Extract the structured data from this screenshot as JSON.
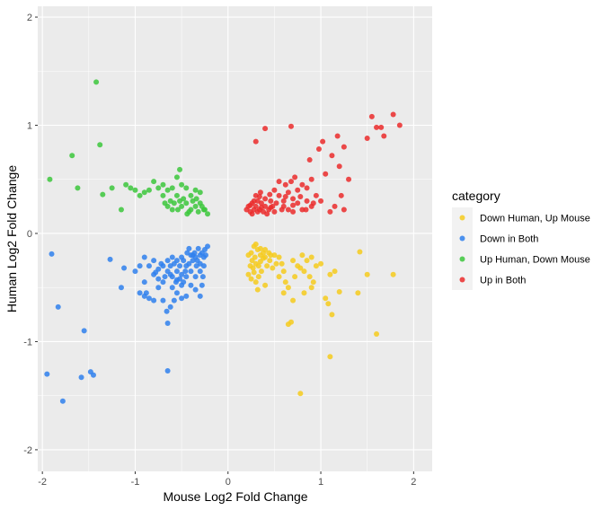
{
  "chart_data": {
    "type": "scatter",
    "xlabel": "Mouse Log2 Fold Change",
    "ylabel": "Human Log2 Fold Change",
    "xlim": [
      -2.05,
      2.2
    ],
    "ylim": [
      -2.2,
      2.1
    ],
    "x_ticks": [
      -2,
      -1,
      0,
      1,
      2
    ],
    "y_ticks": [
      -2,
      -1,
      0,
      1,
      2
    ],
    "grid": true,
    "legend": {
      "title": "category",
      "position": "right"
    },
    "series": [
      {
        "name": "Down Human, Up Mouse",
        "color": "#F6CB1D",
        "points": [
          [
            0.28,
            -0.12
          ],
          [
            0.3,
            -0.1
          ],
          [
            0.25,
            -0.18
          ],
          [
            0.22,
            -0.2
          ],
          [
            0.26,
            -0.25
          ],
          [
            0.32,
            -0.15
          ],
          [
            0.35,
            -0.2
          ],
          [
            0.38,
            -0.18
          ],
          [
            0.3,
            -0.28
          ],
          [
            0.27,
            -0.32
          ],
          [
            0.24,
            -0.3
          ],
          [
            0.4,
            -0.22
          ],
          [
            0.45,
            -0.25
          ],
          [
            0.5,
            -0.2
          ],
          [
            0.42,
            -0.3
          ],
          [
            0.36,
            -0.35
          ],
          [
            0.33,
            -0.4
          ],
          [
            0.48,
            -0.32
          ],
          [
            0.55,
            -0.22
          ],
          [
            0.58,
            -0.28
          ],
          [
            0.6,
            -0.35
          ],
          [
            0.35,
            -0.26
          ],
          [
            0.29,
            -0.22
          ],
          [
            0.44,
            -0.18
          ],
          [
            0.52,
            -0.28
          ],
          [
            0.3,
            -0.45
          ],
          [
            0.25,
            -0.42
          ],
          [
            0.4,
            -0.48
          ],
          [
            0.55,
            -0.4
          ],
          [
            0.62,
            -0.45
          ],
          [
            0.7,
            -0.25
          ],
          [
            0.75,
            -0.3
          ],
          [
            0.8,
            -0.2
          ],
          [
            0.85,
            -0.25
          ],
          [
            0.78,
            -0.32
          ],
          [
            0.9,
            -0.22
          ],
          [
            0.95,
            -0.3
          ],
          [
            1.0,
            -0.28
          ],
          [
            0.88,
            -0.4
          ],
          [
            0.92,
            -0.45
          ],
          [
            0.82,
            -0.35
          ],
          [
            0.72,
            -0.4
          ],
          [
            0.65,
            -0.5
          ],
          [
            0.6,
            -0.55
          ],
          [
            0.7,
            -0.62
          ],
          [
            0.68,
            -0.82
          ],
          [
            0.65,
            -0.84
          ],
          [
            0.82,
            -0.55
          ],
          [
            0.9,
            -0.5
          ],
          [
            1.05,
            -0.6
          ],
          [
            1.08,
            -0.65
          ],
          [
            1.15,
            -0.35
          ],
          [
            1.1,
            -0.38
          ],
          [
            1.2,
            -0.54
          ],
          [
            1.4,
            -0.55
          ],
          [
            1.42,
            -0.17
          ],
          [
            1.5,
            -0.38
          ],
          [
            1.6,
            -0.93
          ],
          [
            1.78,
            -0.38
          ],
          [
            0.78,
            -1.48
          ],
          [
            1.1,
            -1.14
          ],
          [
            1.12,
            -0.75
          ],
          [
            0.22,
            -0.38
          ],
          [
            0.33,
            -0.3
          ],
          [
            0.38,
            -0.23
          ],
          [
            0.46,
            -0.2
          ],
          [
            0.35,
            -0.14
          ],
          [
            0.4,
            -0.15
          ],
          [
            0.28,
            -0.36
          ],
          [
            0.32,
            -0.52
          ]
        ]
      },
      {
        "name": "Down in Both",
        "color": "#2F80ED",
        "points": [
          [
            -0.22,
            -0.12
          ],
          [
            -0.25,
            -0.15
          ],
          [
            -0.28,
            -0.18
          ],
          [
            -0.3,
            -0.2
          ],
          [
            -0.32,
            -0.14
          ],
          [
            -0.35,
            -0.22
          ],
          [
            -0.38,
            -0.25
          ],
          [
            -0.4,
            -0.2
          ],
          [
            -0.42,
            -0.28
          ],
          [
            -0.45,
            -0.3
          ],
          [
            -0.48,
            -0.25
          ],
          [
            -0.5,
            -0.22
          ],
          [
            -0.3,
            -0.28
          ],
          [
            -0.26,
            -0.22
          ],
          [
            -0.34,
            -0.3
          ],
          [
            -0.36,
            -0.18
          ],
          [
            -0.44,
            -0.18
          ],
          [
            -0.52,
            -0.3
          ],
          [
            -0.55,
            -0.25
          ],
          [
            -0.58,
            -0.28
          ],
          [
            -0.6,
            -0.22
          ],
          [
            -0.62,
            -0.3
          ],
          [
            -0.65,
            -0.25
          ],
          [
            -0.55,
            -0.35
          ],
          [
            -0.5,
            -0.38
          ],
          [
            -0.45,
            -0.4
          ],
          [
            -0.4,
            -0.35
          ],
          [
            -0.48,
            -0.45
          ],
          [
            -0.52,
            -0.42
          ],
          [
            -0.56,
            -0.45
          ],
          [
            -0.6,
            -0.4
          ],
          [
            -0.65,
            -0.35
          ],
          [
            -0.7,
            -0.3
          ],
          [
            -0.68,
            -0.4
          ],
          [
            -0.72,
            -0.28
          ],
          [
            -0.75,
            -0.33
          ],
          [
            -0.78,
            -0.36
          ],
          [
            -0.8,
            -0.25
          ],
          [
            -0.7,
            -0.45
          ],
          [
            -0.6,
            -0.5
          ],
          [
            -0.55,
            -0.55
          ],
          [
            -0.5,
            -0.6
          ],
          [
            -0.45,
            -0.58
          ],
          [
            -0.4,
            -0.48
          ],
          [
            -0.35,
            -0.4
          ],
          [
            -0.3,
            -0.35
          ],
          [
            -0.26,
            -0.3
          ],
          [
            -0.28,
            -0.48
          ],
          [
            -0.3,
            -0.58
          ],
          [
            -0.35,
            -0.52
          ],
          [
            -0.58,
            -0.62
          ],
          [
            -0.62,
            -0.68
          ],
          [
            -0.66,
            -0.72
          ],
          [
            -0.7,
            -0.62
          ],
          [
            -0.75,
            -0.5
          ],
          [
            -0.8,
            -0.38
          ],
          [
            -0.85,
            -0.3
          ],
          [
            -0.9,
            -0.22
          ],
          [
            -0.95,
            -0.3
          ],
          [
            -1.0,
            -0.35
          ],
          [
            -0.9,
            -0.45
          ],
          [
            -0.88,
            -0.55
          ],
          [
            -0.85,
            -0.6
          ],
          [
            -0.9,
            -0.58
          ],
          [
            -0.95,
            -0.55
          ],
          [
            -0.8,
            -0.62
          ],
          [
            -0.65,
            -0.83
          ],
          [
            -0.65,
            -1.27
          ],
          [
            -1.15,
            -0.5
          ],
          [
            -1.12,
            -0.32
          ],
          [
            -1.27,
            -0.24
          ],
          [
            -1.48,
            -1.28
          ],
          [
            -1.45,
            -1.31
          ],
          [
            -1.58,
            -1.33
          ],
          [
            -1.55,
            -0.9
          ],
          [
            -1.83,
            -0.68
          ],
          [
            -1.9,
            -0.19
          ],
          [
            -1.95,
            -1.3
          ],
          [
            -1.78,
            -1.55
          ],
          [
            -0.55,
            -0.43
          ],
          [
            -0.38,
            -0.2
          ],
          [
            -0.33,
            -0.25
          ],
          [
            -0.42,
            -0.14
          ],
          [
            -0.46,
            -0.35
          ],
          [
            -0.24,
            -0.2
          ],
          [
            -0.27,
            -0.4
          ],
          [
            -0.5,
            -0.48
          ],
          [
            -0.62,
            -0.38
          ],
          [
            -0.75,
            -0.42
          ]
        ]
      },
      {
        "name": "Up Human, Down Mouse",
        "color": "#3CC73C",
        "points": [
          [
            -0.22,
            0.18
          ],
          [
            -0.25,
            0.22
          ],
          [
            -0.28,
            0.25
          ],
          [
            -0.3,
            0.28
          ],
          [
            -0.32,
            0.2
          ],
          [
            -0.35,
            0.25
          ],
          [
            -0.38,
            0.3
          ],
          [
            -0.4,
            0.22
          ],
          [
            -0.42,
            0.2
          ],
          [
            -0.45,
            0.28
          ],
          [
            -0.48,
            0.32
          ],
          [
            -0.5,
            0.25
          ],
          [
            -0.52,
            0.3
          ],
          [
            -0.55,
            0.35
          ],
          [
            -0.58,
            0.28
          ],
          [
            -0.6,
            0.22
          ],
          [
            -0.62,
            0.3
          ],
          [
            -0.65,
            0.25
          ],
          [
            -0.68,
            0.28
          ],
          [
            -0.7,
            0.35
          ],
          [
            -0.3,
            0.38
          ],
          [
            -0.35,
            0.4
          ],
          [
            -0.4,
            0.35
          ],
          [
            -0.45,
            0.42
          ],
          [
            -0.5,
            0.45
          ],
          [
            -0.55,
            0.52
          ],
          [
            -0.52,
            0.59
          ],
          [
            -0.6,
            0.42
          ],
          [
            -0.65,
            0.4
          ],
          [
            -0.7,
            0.45
          ],
          [
            -0.75,
            0.42
          ],
          [
            -0.8,
            0.48
          ],
          [
            -0.85,
            0.4
          ],
          [
            -0.9,
            0.38
          ],
          [
            -0.95,
            0.35
          ],
          [
            -1.0,
            0.4
          ],
          [
            -1.05,
            0.42
          ],
          [
            -1.1,
            0.45
          ],
          [
            -1.15,
            0.22
          ],
          [
            -1.25,
            0.42
          ],
          [
            -1.35,
            0.36
          ],
          [
            -1.38,
            0.82
          ],
          [
            -1.42,
            1.4
          ],
          [
            -1.62,
            0.42
          ],
          [
            -1.68,
            0.72
          ],
          [
            -1.92,
            0.5
          ],
          [
            -0.26,
            0.22
          ],
          [
            -0.34,
            0.32
          ],
          [
            -0.44,
            0.18
          ],
          [
            -0.54,
            0.22
          ]
        ]
      },
      {
        "name": "Up in Both",
        "color": "#EB2C2C",
        "points": [
          [
            0.2,
            0.22
          ],
          [
            0.22,
            0.25
          ],
          [
            0.24,
            0.2
          ],
          [
            0.26,
            0.28
          ],
          [
            0.28,
            0.22
          ],
          [
            0.3,
            0.25
          ],
          [
            0.32,
            0.3
          ],
          [
            0.34,
            0.22
          ],
          [
            0.36,
            0.28
          ],
          [
            0.38,
            0.2
          ],
          [
            0.4,
            0.25
          ],
          [
            0.42,
            0.18
          ],
          [
            0.44,
            0.22
          ],
          [
            0.46,
            0.3
          ],
          [
            0.48,
            0.25
          ],
          [
            0.5,
            0.2
          ],
          [
            0.52,
            0.28
          ],
          [
            0.3,
            0.35
          ],
          [
            0.35,
            0.38
          ],
          [
            0.4,
            0.32
          ],
          [
            0.45,
            0.36
          ],
          [
            0.5,
            0.4
          ],
          [
            0.55,
            0.35
          ],
          [
            0.6,
            0.3
          ],
          [
            0.65,
            0.38
          ],
          [
            0.7,
            0.32
          ],
          [
            0.75,
            0.28
          ],
          [
            0.8,
            0.22
          ],
          [
            0.85,
            0.3
          ],
          [
            0.9,
            0.25
          ],
          [
            0.6,
            0.25
          ],
          [
            0.65,
            0.22
          ],
          [
            0.7,
            0.2
          ],
          [
            0.75,
            0.4
          ],
          [
            0.8,
            0.45
          ],
          [
            0.85,
            0.42
          ],
          [
            0.9,
            0.5
          ],
          [
            0.95,
            0.35
          ],
          [
            1.0,
            0.3
          ],
          [
            1.05,
            0.55
          ],
          [
            0.68,
            0.48
          ],
          [
            0.72,
            0.52
          ],
          [
            0.62,
            0.45
          ],
          [
            0.55,
            0.48
          ],
          [
            1.12,
            0.72
          ],
          [
            1.2,
            0.62
          ],
          [
            1.25,
            0.8
          ],
          [
            1.18,
            0.9
          ],
          [
            1.22,
            0.35
          ],
          [
            1.15,
            0.25
          ],
          [
            1.1,
            0.2
          ],
          [
            1.25,
            0.22
          ],
          [
            1.3,
            0.5
          ],
          [
            0.3,
            0.85
          ],
          [
            0.4,
            0.97
          ],
          [
            0.68,
            0.99
          ],
          [
            0.88,
            0.68
          ],
          [
            0.98,
            0.78
          ],
          [
            1.02,
            0.85
          ],
          [
            1.5,
            0.88
          ],
          [
            1.55,
            1.08
          ],
          [
            1.6,
            0.98
          ],
          [
            1.65,
            0.98
          ],
          [
            1.68,
            0.9
          ],
          [
            1.78,
            1.1
          ],
          [
            1.85,
            1.0
          ],
          [
            0.24,
            0.26
          ],
          [
            0.26,
            0.18
          ],
          [
            0.28,
            0.3
          ],
          [
            0.32,
            0.2
          ],
          [
            0.34,
            0.34
          ],
          [
            0.36,
            0.24
          ],
          [
            0.46,
            0.24
          ],
          [
            0.58,
            0.22
          ],
          [
            0.62,
            0.34
          ],
          [
            0.7,
            0.26
          ],
          [
            0.78,
            0.34
          ],
          [
            0.84,
            0.22
          ],
          [
            0.92,
            0.28
          ]
        ]
      }
    ]
  }
}
